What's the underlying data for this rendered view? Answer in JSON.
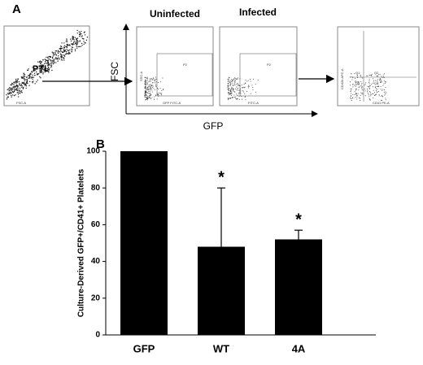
{
  "panel_a": {
    "label": "A",
    "gate": "PTL",
    "titles": [
      "Uninfected",
      "Infected"
    ],
    "axis_y": "FSC",
    "axis_x": "GFP",
    "plot_labels": [
      "SSC-A",
      "FSC-A",
      "P2",
      "GFP FITC-A",
      "FITC-A",
      "CD41 PE-A",
      "CD42b APC-A",
      "Q1",
      "Q2",
      "Q3",
      "Q4"
    ]
  },
  "chart_data": {
    "type": "bar",
    "label": "B",
    "ylabel": "Culture-Derived GFP+/CD41+ Platelets",
    "categories": [
      "GFP",
      "WT",
      "4A"
    ],
    "values": [
      100,
      48,
      52
    ],
    "errors": [
      0,
      32,
      5
    ],
    "color": "#000000",
    "ylim": [
      0,
      100
    ],
    "yticks": [
      0,
      20,
      40,
      60,
      80,
      100
    ],
    "annotations": [
      {
        "text": "*",
        "category": "WT"
      },
      {
        "text": "*",
        "category": "4A"
      }
    ]
  }
}
